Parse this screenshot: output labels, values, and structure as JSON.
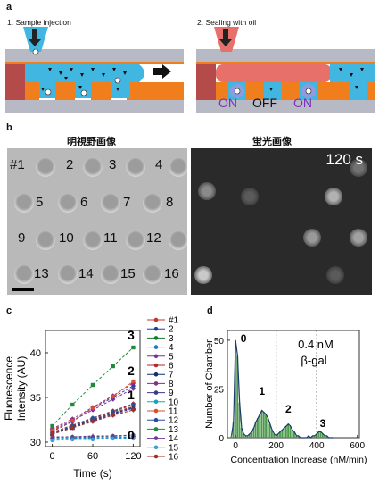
{
  "panels": {
    "a": {
      "label": "a",
      "step1": "1. Sample injection",
      "step2": "2. Sealing with oil",
      "states": [
        "ON",
        "OFF",
        "ON"
      ],
      "colors": {
        "sample": "#41b6e0",
        "oil": "#e8706a",
        "orange": "#f07e1c",
        "glass": "#b7bac4",
        "on": "#7a2fbf"
      }
    },
    "b": {
      "label": "b",
      "brightfield_title": "明視野画像",
      "fluorescence_title": "蛍光画像",
      "time_label": "120 s",
      "wells": [
        "#1",
        "2",
        "3",
        "4",
        "5",
        "6",
        "7",
        "8",
        "9",
        "10",
        "11",
        "12",
        "13",
        "14",
        "15",
        "16"
      ],
      "bright_wells": [
        5,
        8,
        12,
        13,
        10
      ]
    },
    "c": {
      "label": "c",
      "legend": [
        "#1",
        "2",
        "3",
        "4",
        "5",
        "6",
        "7",
        "8",
        "9",
        "10",
        "11",
        "12",
        "13",
        "14",
        "15",
        "16"
      ],
      "group_labels": [
        "3",
        "2",
        "1",
        "0"
      ]
    },
    "d": {
      "label": "d",
      "annotation_line1": "0.4 nM",
      "annotation_line2": "β-gal",
      "peak_labels": [
        "0",
        "1",
        "2",
        "3"
      ]
    }
  },
  "chart_data": [
    {
      "type": "line",
      "panel": "c",
      "xlabel": "Time (s)",
      "ylabel": "Fluorescence Intensity (AU)",
      "x": [
        0,
        30,
        60,
        90,
        120
      ],
      "xlim": [
        -10,
        130
      ],
      "ylim": [
        29.5,
        42.5
      ],
      "xticks": [
        0,
        60,
        120
      ],
      "yticks": [
        30,
        35,
        40
      ],
      "series": [
        {
          "name": "#1",
          "color": "#c0392b",
          "marker": "circle",
          "values": [
            31.0,
            31.8,
            32.6,
            33.3,
            34.0
          ]
        },
        {
          "name": "2",
          "color": "#1f3fa0",
          "marker": "circle",
          "values": [
            31.2,
            32.3,
            33.8,
            35.0,
            36.3
          ]
        },
        {
          "name": "3",
          "color": "#157a2e",
          "marker": "circle",
          "values": [
            30.5,
            30.6,
            30.6,
            30.7,
            30.8
          ]
        },
        {
          "name": "4",
          "color": "#1b78c8",
          "marker": "circle",
          "values": [
            30.3,
            30.4,
            30.4,
            30.5,
            30.5
          ]
        },
        {
          "name": "5",
          "color": "#7b2fa6",
          "marker": "diamond",
          "values": [
            31.4,
            32.4,
            33.6,
            34.8,
            36.0
          ]
        },
        {
          "name": "6",
          "color": "#b22a2a",
          "marker": "diamond",
          "values": [
            31.1,
            31.9,
            32.7,
            33.5,
            34.3
          ]
        },
        {
          "name": "7",
          "color": "#12316e",
          "marker": "triangle",
          "values": [
            31.0,
            31.7,
            32.5,
            33.2,
            33.9
          ]
        },
        {
          "name": "8",
          "color": "#8a2d8a",
          "marker": "diamond",
          "values": [
            31.5,
            32.6,
            33.9,
            35.2,
            36.6
          ]
        },
        {
          "name": "9",
          "color": "#3a3a8a",
          "marker": "triangle",
          "values": [
            30.9,
            31.6,
            32.4,
            33.1,
            33.8
          ]
        },
        {
          "name": "10",
          "color": "#1aa3c0",
          "marker": "circle",
          "values": [
            30.4,
            30.5,
            30.5,
            30.6,
            30.6
          ]
        },
        {
          "name": "11",
          "color": "#d9502a",
          "marker": "circle",
          "values": [
            31.3,
            32.4,
            33.8,
            35.1,
            36.8
          ]
        },
        {
          "name": "12",
          "color": "#2a4f9a",
          "marker": "circle",
          "values": [
            31.0,
            31.8,
            32.7,
            33.4,
            34.2
          ]
        },
        {
          "name": "13",
          "color": "#1f8a3c",
          "marker": "square",
          "values": [
            31.8,
            34.2,
            36.4,
            38.5,
            40.6
          ]
        },
        {
          "name": "14",
          "color": "#6a3a9a",
          "marker": "triangle",
          "values": [
            30.6,
            30.6,
            30.7,
            30.7,
            30.8
          ]
        },
        {
          "name": "15",
          "color": "#3aa0d8",
          "marker": "circle",
          "values": [
            30.2,
            30.3,
            30.3,
            30.4,
            30.4
          ]
        },
        {
          "name": "16",
          "color": "#a0302a",
          "marker": "diamond",
          "values": [
            30.9,
            31.6,
            32.3,
            33.0,
            33.6
          ]
        }
      ]
    },
    {
      "type": "bar",
      "panel": "d",
      "xlabel": "Concentration Increase (nM/min)",
      "ylabel": "Number of Chamber",
      "xlim": [
        -40,
        610
      ],
      "ylim": [
        0,
        55
      ],
      "xticks": [
        0,
        200,
        400,
        600
      ],
      "yticks": [
        0,
        25,
        50
      ],
      "dashed_lines_x": [
        200,
        400
      ],
      "bin_width": 10,
      "x": [
        -20,
        -10,
        0,
        10,
        20,
        30,
        40,
        50,
        60,
        70,
        80,
        90,
        100,
        110,
        120,
        130,
        140,
        150,
        160,
        170,
        180,
        190,
        200,
        210,
        220,
        230,
        240,
        250,
        260,
        270,
        280,
        290,
        300,
        310,
        320,
        330,
        340,
        350,
        360,
        370,
        380,
        390,
        400,
        410,
        420,
        430,
        440,
        450,
        460,
        470,
        480
      ],
      "values": [
        1,
        8,
        50,
        42,
        18,
        5,
        2,
        1,
        1,
        2,
        3,
        5,
        8,
        10,
        12,
        14,
        13,
        12,
        10,
        7,
        4,
        2,
        1,
        2,
        3,
        4,
        5,
        6,
        7,
        6,
        4,
        3,
        1,
        1,
        0,
        0,
        0,
        0,
        1,
        0,
        1,
        1,
        2,
        3,
        3,
        2,
        1,
        1,
        0,
        0,
        0
      ],
      "fit_line_color": "#1a3a6a",
      "bar_color": "#4a9a4a"
    }
  ]
}
